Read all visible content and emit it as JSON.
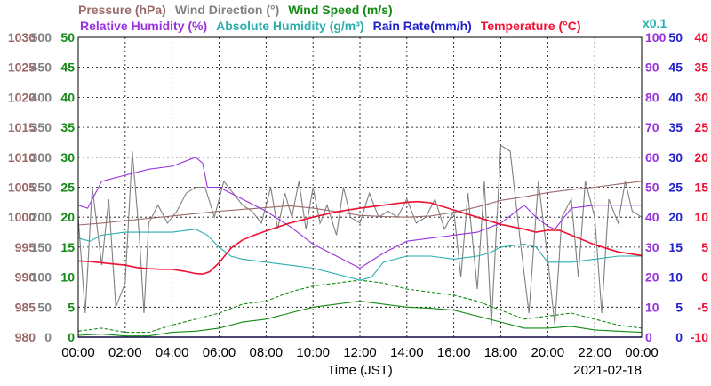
{
  "chart_data": {
    "type": "line",
    "legend": {
      "row1": [
        {
          "key": "pressure",
          "text": "Pressure (hPa)",
          "color": "#9a6b6b"
        },
        {
          "key": "wind_dir",
          "text": "Wind Direction (°)",
          "color": "#808080"
        },
        {
          "key": "wind_speed",
          "text": "Wind Speed (m/s)",
          "color": "#138a13"
        }
      ],
      "row2": [
        {
          "key": "rh",
          "text": "Relative Humidity (%)",
          "color": "#9933dd"
        },
        {
          "key": "ah",
          "text": "Absolute Humidity (g/m³)",
          "color": "#2aaeae"
        },
        {
          "key": "rain",
          "text": "Rain Rate(mm/h)",
          "color": "#2222cc"
        },
        {
          "key": "temp",
          "text": "Temperature (°C)",
          "color": "#ee1133"
        }
      ],
      "ah_scale_note": "x0.1"
    },
    "axes": {
      "pressure": {
        "color": "#9a6b6b",
        "range": [
          980,
          1030
        ],
        "ticks": [
          "980",
          "985",
          "990",
          "995",
          "1000",
          "1005",
          "1010",
          "1015",
          "1020",
          "1025",
          "1030"
        ]
      },
      "wind_dir": {
        "color": "#808080",
        "range": [
          0,
          500
        ],
        "ticks": [
          "0",
          "50",
          "100",
          "150",
          "200",
          "250",
          "300",
          "350",
          "400",
          "450",
          "500"
        ]
      },
      "wind_speed": {
        "color": "#138a13",
        "range": [
          0,
          50
        ],
        "ticks": [
          "0",
          "5",
          "10",
          "15",
          "20",
          "25",
          "30",
          "35",
          "40",
          "45",
          "50"
        ]
      },
      "rh": {
        "color": "#9933dd",
        "range": [
          0,
          100
        ],
        "ticks": [
          "0",
          "10",
          "20",
          "30",
          "40",
          "50",
          "60",
          "70",
          "80",
          "90",
          "100"
        ]
      },
      "rain": {
        "color": "#2222cc",
        "range": [
          0,
          50
        ],
        "ticks": [
          "0",
          "5",
          "10",
          "15",
          "20",
          "25",
          "30",
          "35",
          "40",
          "45",
          "50"
        ]
      },
      "temp": {
        "color": "#ee1133",
        "range": [
          -10,
          40
        ],
        "ticks": [
          "-10",
          "-5",
          "0",
          "5",
          "10",
          "15",
          "20",
          "25",
          "30",
          "35",
          "40"
        ]
      }
    },
    "x": {
      "label": "Time (JST)",
      "date": "2021-02-18",
      "range": [
        0,
        24
      ],
      "ticks": [
        "00:00",
        "02:00",
        "04:00",
        "06:00",
        "08:00",
        "10:00",
        "12:00",
        "14:00",
        "16:00",
        "18:00",
        "20:00",
        "22:00",
        "00:00"
      ]
    },
    "series": [
      {
        "key": "pressure",
        "name": "Pressure (hPa)",
        "axis": "pressure",
        "color": "#9a6b6b",
        "x": [
          0,
          1,
          2,
          3,
          4,
          5,
          6,
          7,
          8,
          9,
          10,
          11,
          12,
          13,
          14,
          15,
          16,
          17,
          18,
          19,
          20,
          21,
          22,
          23,
          24
        ],
        "y": [
          998.7,
          999.0,
          999.4,
          999.8,
          1000.2,
          1000.6,
          1001.0,
          1001.3,
          1001.6,
          1001.9,
          1001.5,
          1000.9,
          1000.3,
          1000.1,
          1000.0,
          1000.2,
          1000.8,
          1001.7,
          1002.8,
          1003.4,
          1004.1,
          1004.6,
          1005.0,
          1005.5,
          1006.0
        ]
      },
      {
        "key": "temp",
        "name": "Temperature (°C)",
        "axis": "temp",
        "color": "#ee1133",
        "x": [
          0,
          0.5,
          1,
          1.5,
          2,
          2.5,
          3,
          3.5,
          4,
          4.5,
          5,
          5.3,
          5.6,
          6,
          6.5,
          7,
          7.5,
          8,
          9,
          10,
          11,
          12,
          13,
          14,
          14.5,
          15,
          16,
          17,
          18,
          19,
          19.5,
          20,
          20.5,
          21,
          22,
          23,
          24
        ],
        "y": [
          2.7,
          2.6,
          2.4,
          2.2,
          2.0,
          1.6,
          1.4,
          1.3,
          1.3,
          1.0,
          0.6,
          0.5,
          0.9,
          2.4,
          4.8,
          6.2,
          7.0,
          7.7,
          9.0,
          10.0,
          10.9,
          11.5,
          12.0,
          12.5,
          12.6,
          12.4,
          11.2,
          10.0,
          8.8,
          8.0,
          7.5,
          7.8,
          7.8,
          7.0,
          5.4,
          4.2,
          3.6
        ]
      },
      {
        "key": "ah",
        "name": "Absolute Humidity (g/m³)",
        "axis": "rh",
        "color": "#2aaeae",
        "x": [
          0,
          0.5,
          1,
          2,
          3,
          4,
          5,
          5.5,
          6,
          6.5,
          7,
          8,
          9,
          10,
          11,
          12,
          12.5,
          13,
          14,
          15,
          16,
          17,
          17.5,
          18,
          19,
          19.5,
          20,
          21,
          22,
          23,
          24
        ],
        "y": [
          33,
          32,
          34,
          35,
          35,
          35,
          36,
          34,
          30,
          27,
          26,
          25,
          24,
          23,
          21,
          19,
          20,
          25,
          27,
          27,
          26,
          27,
          28,
          30,
          31,
          30,
          25,
          25,
          26,
          27,
          27
        ]
      },
      {
        "key": "rh",
        "name": "Relative Humidity (%)",
        "axis": "rh",
        "color": "#9933dd",
        "x": [
          0,
          0.4,
          1,
          2,
          3,
          4,
          5,
          5.3,
          5.5,
          6,
          7,
          8,
          9,
          10,
          11,
          12,
          13,
          14,
          15,
          16,
          17,
          18,
          19,
          19.5,
          20,
          20.3,
          21,
          22,
          23,
          24
        ],
        "y": [
          44,
          43,
          52,
          54,
          56,
          57,
          60,
          58,
          50,
          50,
          46,
          42,
          37,
          31,
          27,
          23,
          28,
          32,
          33,
          34,
          35,
          38,
          44,
          40,
          37,
          36,
          43,
          44,
          44,
          44
        ]
      },
      {
        "key": "wind_dir",
        "name": "Wind Direction (°)",
        "axis": "wind_dir",
        "color": "#808080",
        "x": [
          0,
          0.3,
          0.6,
          1,
          1.3,
          1.6,
          2,
          2.3,
          2.6,
          2.8,
          3,
          3.4,
          3.8,
          4.2,
          4.6,
          5,
          5.4,
          5.8,
          6.2,
          6.6,
          7,
          7.4,
          7.8,
          8.2,
          8.5,
          8.8,
          9.1,
          9.4,
          9.7,
          10,
          10.3,
          10.6,
          11,
          11.3,
          11.6,
          12,
          12.4,
          12.8,
          13.2,
          13.6,
          14,
          14.4,
          14.8,
          15.2,
          15.6,
          16,
          16.3,
          16.6,
          17,
          17.3,
          17.6,
          18,
          18.4,
          18.8,
          19.2,
          19.6,
          20,
          20.3,
          20.6,
          21,
          21.3,
          21.6,
          22,
          22.3,
          22.6,
          23,
          23.3,
          23.6,
          24
        ],
        "y": [
          200,
          40,
          250,
          120,
          230,
          50,
          90,
          310,
          170,
          40,
          190,
          220,
          190,
          210,
          240,
          250,
          250,
          200,
          260,
          240,
          220,
          210,
          190,
          250,
          180,
          240,
          200,
          260,
          180,
          250,
          190,
          220,
          170,
          250,
          200,
          190,
          240,
          200,
          210,
          200,
          230,
          190,
          200,
          230,
          180,
          210,
          100,
          240,
          80,
          260,
          20,
          320,
          310,
          170,
          40,
          260,
          130,
          20,
          200,
          230,
          100,
          260,
          200,
          40,
          230,
          190,
          260,
          210,
          200
        ]
      },
      {
        "key": "wind_speed",
        "name": "Wind Speed (m/s)",
        "axis": "wind_speed",
        "color": "#138a13",
        "x": [
          0,
          1,
          2,
          3,
          4,
          5,
          6,
          7,
          8,
          9,
          10,
          11,
          12,
          13,
          14,
          15,
          16,
          17,
          18,
          19,
          20,
          21,
          22,
          23,
          24
        ],
        "y": [
          0.3,
          0.5,
          0.2,
          0.2,
          0.8,
          1.0,
          1.5,
          2.5,
          3.0,
          4.0,
          5.0,
          5.5,
          6.0,
          5.5,
          5.0,
          4.8,
          4.5,
          3.5,
          2.5,
          1.5,
          1.5,
          1.8,
          1.2,
          1.0,
          0.8
        ]
      },
      {
        "key": "gust",
        "name": "",
        "axis": "wind_speed",
        "color": "#138a13",
        "dashed": true,
        "x": [
          0,
          1,
          2,
          3,
          4,
          5,
          6,
          7,
          8,
          9,
          10,
          11,
          12,
          13,
          14,
          15,
          16,
          17,
          18,
          19,
          20,
          21,
          22,
          23,
          24
        ],
        "y": [
          1.0,
          1.5,
          0.8,
          0.8,
          2.0,
          3.0,
          4.0,
          5.5,
          6.0,
          7.5,
          8.5,
          9.0,
          9.5,
          9.0,
          8.0,
          7.5,
          7.0,
          6.0,
          4.5,
          3.0,
          3.5,
          4.0,
          3.0,
          2.0,
          1.5
        ]
      },
      {
        "key": "rain",
        "name": "Rain Rate(mm/h)",
        "axis": "rain",
        "color": "#2222cc",
        "x": [
          0,
          24
        ],
        "y": [
          0,
          0
        ]
      }
    ]
  }
}
